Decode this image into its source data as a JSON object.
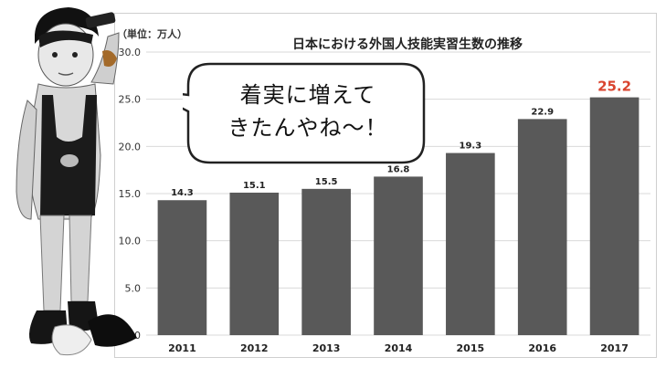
{
  "chart_data": {
    "type": "bar",
    "title": "日本における外国人技能実習生数の推移",
    "unit_label": "（単位：万人）",
    "categories": [
      "2011",
      "2012",
      "2013",
      "2014",
      "2015",
      "2016",
      "2017"
    ],
    "values": [
      14.3,
      15.1,
      15.5,
      16.8,
      19.3,
      22.9,
      25.2
    ],
    "value_labels": [
      "14.3",
      "15.1",
      "15.5",
      "16.8",
      "19.3",
      "22.9",
      "25.2"
    ],
    "y_ticks": [
      "0.0",
      "5.0",
      "10.0",
      "15.0",
      "20.0",
      "25.0",
      "30.0"
    ],
    "ylim": [
      0,
      30
    ],
    "grid": true,
    "bar_color": "#595959",
    "grid_color": "#d9d9d9",
    "highlight_color": "#d9442f",
    "highlight_index": 6
  },
  "speech_bubble": {
    "line1": "着実に増えて",
    "line2": "きたんやね～！"
  }
}
